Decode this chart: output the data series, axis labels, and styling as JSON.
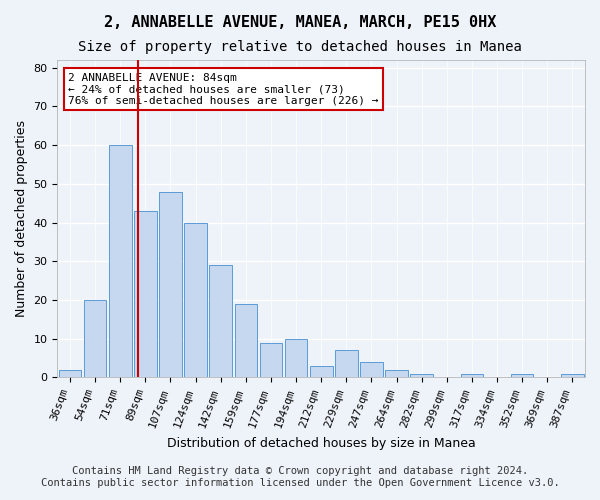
{
  "title": "2, ANNABELLE AVENUE, MANEA, MARCH, PE15 0HX",
  "subtitle": "Size of property relative to detached houses in Manea",
  "xlabel": "Distribution of detached houses by size in Manea",
  "ylabel": "Number of detached properties",
  "bar_color": "#c5d8f0",
  "bar_edge_color": "#5b9bd5",
  "categories": [
    "36sqm",
    "54sqm",
    "71sqm",
    "89sqm",
    "107sqm",
    "124sqm",
    "142sqm",
    "159sqm",
    "177sqm",
    "194sqm",
    "212sqm",
    "229sqm",
    "247sqm",
    "264sqm",
    "282sqm",
    "299sqm",
    "317sqm",
    "334sqm",
    "352sqm",
    "369sqm",
    "387sqm"
  ],
  "values": [
    2,
    20,
    60,
    43,
    48,
    40,
    29,
    19,
    9,
    10,
    3,
    7,
    4,
    2,
    1,
    0,
    1,
    0,
    1,
    0,
    1
  ],
  "ylim": [
    0,
    82
  ],
  "yticks": [
    0,
    10,
    20,
    30,
    40,
    50,
    60,
    70,
    80
  ],
  "vline_x": 2,
  "vline_color": "#cc0000",
  "annotation_text": "2 ANNABELLE AVENUE: 84sqm\n← 24% of detached houses are smaller (73)\n76% of semi-detached houses are larger (226) →",
  "annotation_box_color": "#ffffff",
  "annotation_box_edgecolor": "#cc0000",
  "footer_line1": "Contains HM Land Registry data © Crown copyright and database right 2024.",
  "footer_line2": "Contains public sector information licensed under the Open Government Licence v3.0.",
  "background_color": "#eef3fa",
  "grid_color": "#ffffff",
  "title_fontsize": 11,
  "subtitle_fontsize": 10,
  "axis_label_fontsize": 9,
  "tick_fontsize": 8,
  "footer_fontsize": 7.5
}
